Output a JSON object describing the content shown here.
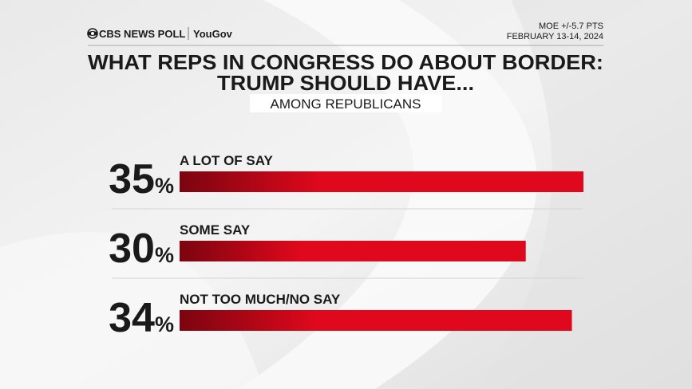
{
  "chart_data": {
    "type": "bar",
    "orientation": "horizontal",
    "source": "CBS NEWS POLL",
    "partner": "YouGov",
    "notes": [
      "MOE +/-5.7 PTS",
      "FEBRUARY 13-14, 2024"
    ],
    "title": [
      "WHAT REPS IN CONGRESS DO ABOUT BORDER:",
      "TRUMP SHOULD HAVE..."
    ],
    "subtitle": "AMONG REPUBLICANS",
    "categories": [
      "A LOT OF SAY",
      "SOME SAY",
      "NOT TOO MUCH/NO SAY"
    ],
    "values": [
      35,
      30,
      34
    ],
    "value_labels": [
      "35%",
      "30%",
      "34%"
    ],
    "color": "#e0081c"
  }
}
